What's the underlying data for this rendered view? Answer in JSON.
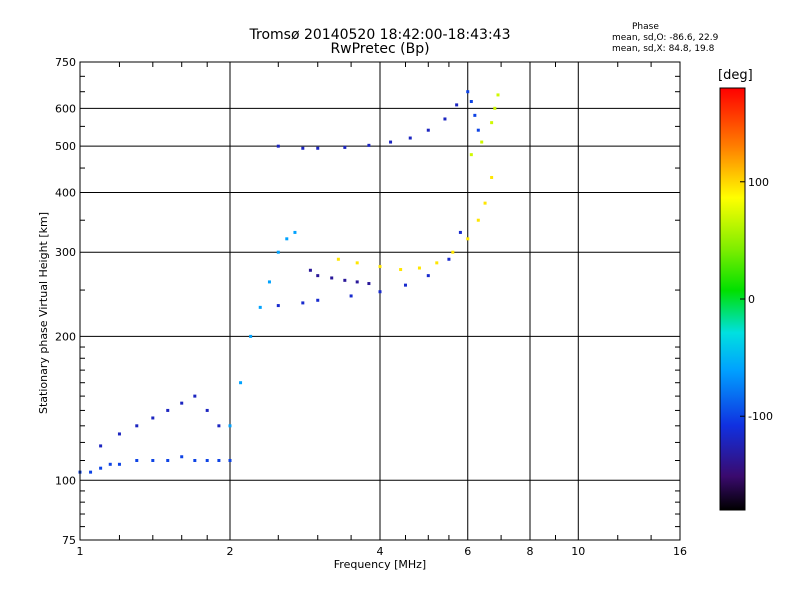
{
  "header": {
    "title": "Tromsø 20140520 18:42:00-18:43:43",
    "subtitle": "RwPretec (Bp)"
  },
  "phase_info": {
    "title": "Phase",
    "o_mode": "mean, sd,O: -86.6, 22.9",
    "x_mode": "mean, sd,X:  84.8, 19.8"
  },
  "chart_data": {
    "type": "scatter",
    "title": "Tromsø 20140520 18:42:00-18:43:43",
    "subtitle": "RwPretec (Bp)",
    "xlabel": "Frequency [MHz]",
    "ylabel": "Stationary phase Virtual Height [km]",
    "x_scale": "log",
    "y_scale": "log",
    "xlim": [
      1,
      16
    ],
    "ylim": [
      75,
      750
    ],
    "x_ticks": [
      1,
      2,
      4,
      6,
      8,
      10,
      16
    ],
    "x_tick_labels": [
      "1",
      "2",
      "4",
      "6",
      "8",
      "10",
      "16"
    ],
    "y_ticks": [
      75,
      100,
      200,
      300,
      400,
      500,
      600,
      750
    ],
    "y_tick_labels": [
      "75",
      "100",
      "200",
      "300",
      "400",
      "500",
      "600",
      "750"
    ],
    "grid": true,
    "colorbar": {
      "label": "[deg]",
      "range": [
        -180,
        180
      ],
      "ticks": [
        100,
        0,
        -100
      ],
      "tick_labels": [
        "100",
        "0",
        "-100"
      ]
    },
    "series": [
      {
        "name": "",
        "color_phase": -100,
        "x": [
          1.0,
          1.05,
          1.1,
          1.15,
          1.2,
          1.3,
          1.4,
          1.5,
          1.6,
          1.7,
          1.8,
          1.9,
          2.0
        ],
        "y": [
          104,
          104,
          106,
          108,
          108,
          110,
          110,
          110,
          112,
          110,
          110,
          110,
          110
        ]
      },
      {
        "name": "",
        "color_phase": -120,
        "x": [
          1.1,
          1.2,
          1.3,
          1.4,
          1.5,
          1.6,
          1.7,
          1.8,
          1.9
        ],
        "y": [
          118,
          125,
          130,
          135,
          140,
          145,
          150,
          140,
          130
        ]
      },
      {
        "name": "",
        "color_phase": -60,
        "x": [
          2.0,
          2.1,
          2.2,
          2.3,
          2.4,
          2.5,
          2.6,
          2.7
        ],
        "y": [
          130,
          160,
          200,
          230,
          260,
          300,
          320,
          330
        ]
      },
      {
        "name": "",
        "color_phase": -115,
        "x": [
          2.5,
          2.8,
          3.0,
          3.5,
          4.0,
          4.5,
          5.0,
          5.5,
          5.8
        ],
        "y": [
          232,
          235,
          238,
          243,
          248,
          256,
          268,
          290,
          330
        ]
      },
      {
        "name": "",
        "color_phase": -135,
        "x": [
          2.9,
          3.0,
          3.2,
          3.4,
          3.6,
          3.8
        ],
        "y": [
          275,
          268,
          265,
          262,
          260,
          258
        ]
      },
      {
        "name": "",
        "color_phase": 95,
        "x": [
          3.3,
          3.6,
          4.0,
          4.4,
          4.8,
          5.2,
          5.6,
          6.0,
          6.3,
          6.5,
          6.7
        ],
        "y": [
          290,
          285,
          280,
          276,
          278,
          285,
          300,
          320,
          350,
          380,
          430
        ]
      },
      {
        "name": "",
        "color_phase": -120,
        "x": [
          2.5,
          2.8,
          3.0,
          3.4,
          3.8,
          4.2,
          4.6,
          5.0,
          5.4,
          5.7
        ],
        "y": [
          500,
          495,
          495,
          497,
          502,
          510,
          520,
          540,
          570,
          610
        ]
      },
      {
        "name": "",
        "color_phase": 70,
        "x": [
          6.1,
          6.4,
          6.7,
          6.8,
          6.9
        ],
        "y": [
          480,
          510,
          560,
          600,
          640
        ]
      },
      {
        "name": "",
        "color_phase": -100,
        "x": [
          6.0,
          6.1,
          6.2,
          6.3
        ],
        "y": [
          650,
          620,
          580,
          540
        ]
      }
    ]
  }
}
